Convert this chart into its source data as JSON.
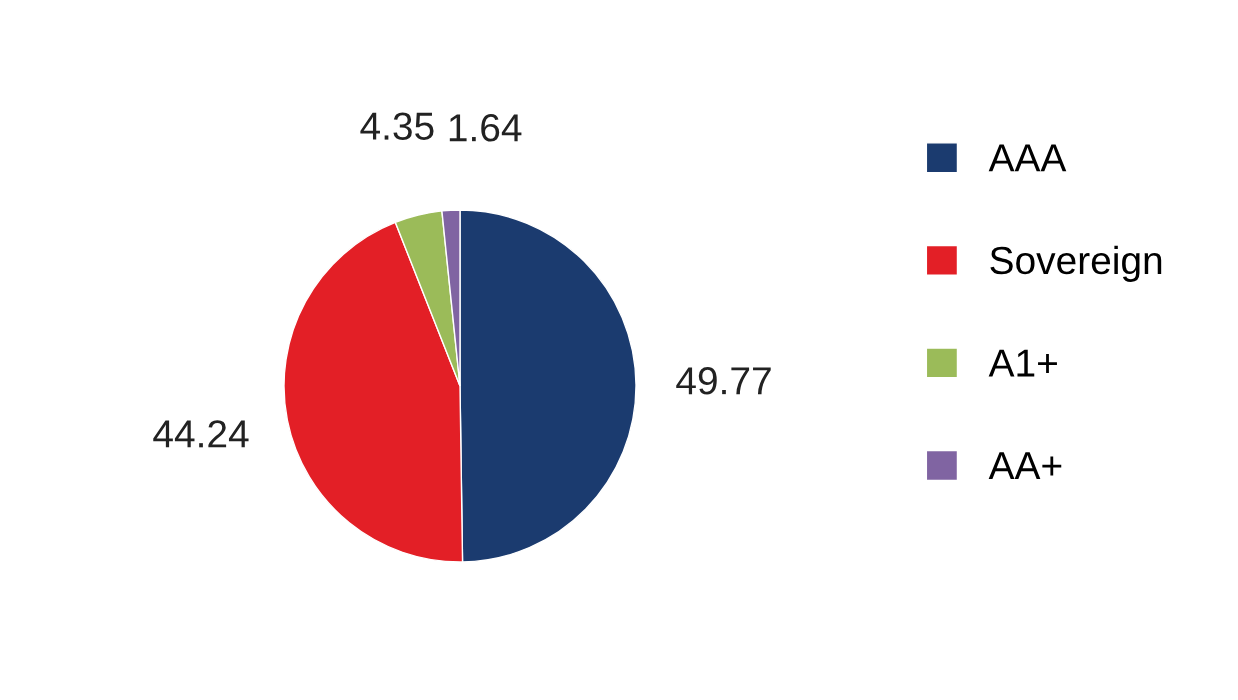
{
  "chart_data": {
    "type": "pie",
    "categories": [
      "AAA",
      "Sovereign",
      "A1+",
      "AA+"
    ],
    "values": [
      49.77,
      44.24,
      4.35,
      1.64
    ],
    "colors": [
      "#1b3b6f",
      "#e31f26",
      "#9bbb59",
      "#8064a2"
    ],
    "data_labels": true,
    "legend": "right"
  }
}
